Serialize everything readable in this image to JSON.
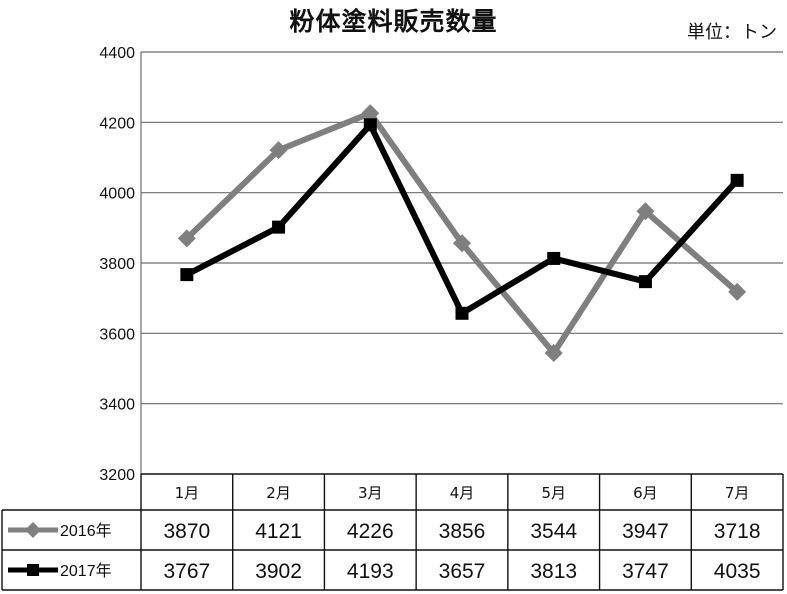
{
  "title": "粉体塗料販売数量",
  "unit": "単位：トン",
  "chart_data": {
    "type": "line",
    "title": "粉体塗料販売数量",
    "ylim": [
      3200,
      4400
    ],
    "yticks": [
      "3200",
      "3400",
      "3600",
      "3800",
      "4000",
      "4200",
      "4400"
    ],
    "categories": [
      "1月",
      "2月",
      "3月",
      "4月",
      "5月",
      "6月",
      "7月"
    ],
    "grid": true,
    "legend": "data-table-left",
    "series": [
      {
        "name": "2016年",
        "values": [
          3870,
          4121,
          4226,
          3856,
          3544,
          3947,
          3718
        ],
        "color": "#7f7f7f",
        "marker": "diamond"
      },
      {
        "name": "2017年",
        "values": [
          3767,
          3902,
          4193,
          3657,
          3813,
          3747,
          4035
        ],
        "color": "#000000",
        "marker": "square"
      }
    ]
  }
}
